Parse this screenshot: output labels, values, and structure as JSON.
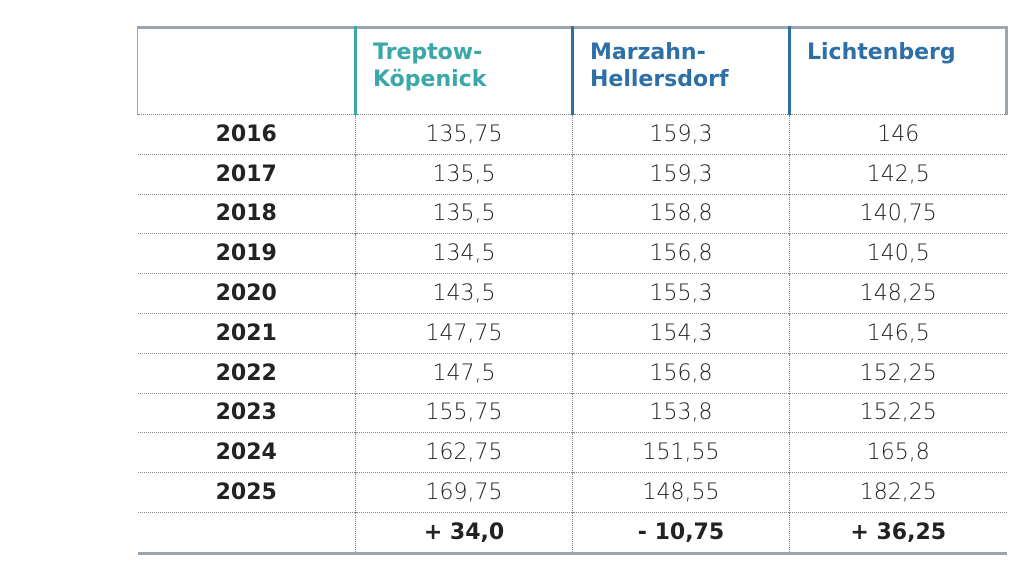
{
  "table": {
    "header": [
      "",
      "Treptow-\nKöpenick",
      "Marzahn-\nHellersdorf",
      "Lichtenberg"
    ],
    "rows": [
      [
        "2016",
        "135,75",
        "159,3",
        "146"
      ],
      [
        "2017",
        "135,5",
        "159,3",
        "142,5"
      ],
      [
        "2018",
        "135,5",
        "158,8",
        "140,75"
      ],
      [
        "2019",
        "134,5",
        "156,8",
        "140,5"
      ],
      [
        "2020",
        "143,5",
        "155,3",
        "148,25"
      ],
      [
        "2021",
        "147,75",
        "154,3",
        "146,5"
      ],
      [
        "2022",
        "147,5",
        "156,8",
        "152,25"
      ],
      [
        "2023",
        "155,75",
        "153,8",
        "152,25"
      ],
      [
        "2024",
        "162,75",
        "151,55",
        "165,8"
      ],
      [
        "2025",
        "169,75",
        "148,55",
        "182,25"
      ]
    ],
    "summary": [
      "",
      "+ 34,0",
      "- 10,75",
      "+ 36,25"
    ]
  }
}
